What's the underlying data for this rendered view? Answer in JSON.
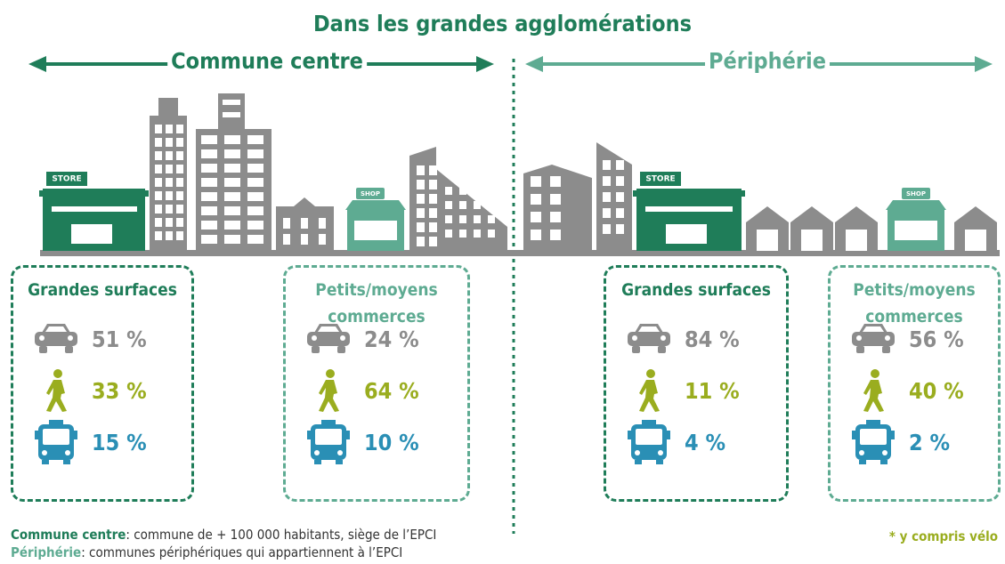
{
  "title": "Dans les grandes agglomérations",
  "zones": [
    {
      "label": "Commune centre",
      "color": "#1f7d59"
    },
    {
      "label": "Périphérie",
      "color": "#5eab92"
    }
  ],
  "signs": {
    "store": "STORE",
    "shop": "SHOP"
  },
  "panels": [
    {
      "title": "Grandes surfaces",
      "color": "#1f7d59",
      "car": "51 %",
      "walk": "33 %",
      "bus": "15 %"
    },
    {
      "title": "Petits/moyens commerces",
      "color": "#5eab92",
      "car": "24 %",
      "walk": "64 %",
      "bus": "10 %"
    },
    {
      "title": "Grandes surfaces",
      "color": "#1f7d59",
      "car": "84 %",
      "walk": "11 %",
      "bus": "4 %"
    },
    {
      "title": "Petits/moyens commerces",
      "color": "#5eab92",
      "car": "56 %",
      "walk": "40 %",
      "bus": "2 %"
    }
  ],
  "footnotes": [
    {
      "term": "Commune centre",
      "definition": ": commune de + 100 000 habitants, siège de l’EPCI",
      "color": "#1f7d59"
    },
    {
      "term": "Périphérie",
      "definition": ": communes périphériques qui appartiennent à l’EPCI",
      "color": "#5eab92"
    }
  ],
  "note": "* y compris vélo"
}
